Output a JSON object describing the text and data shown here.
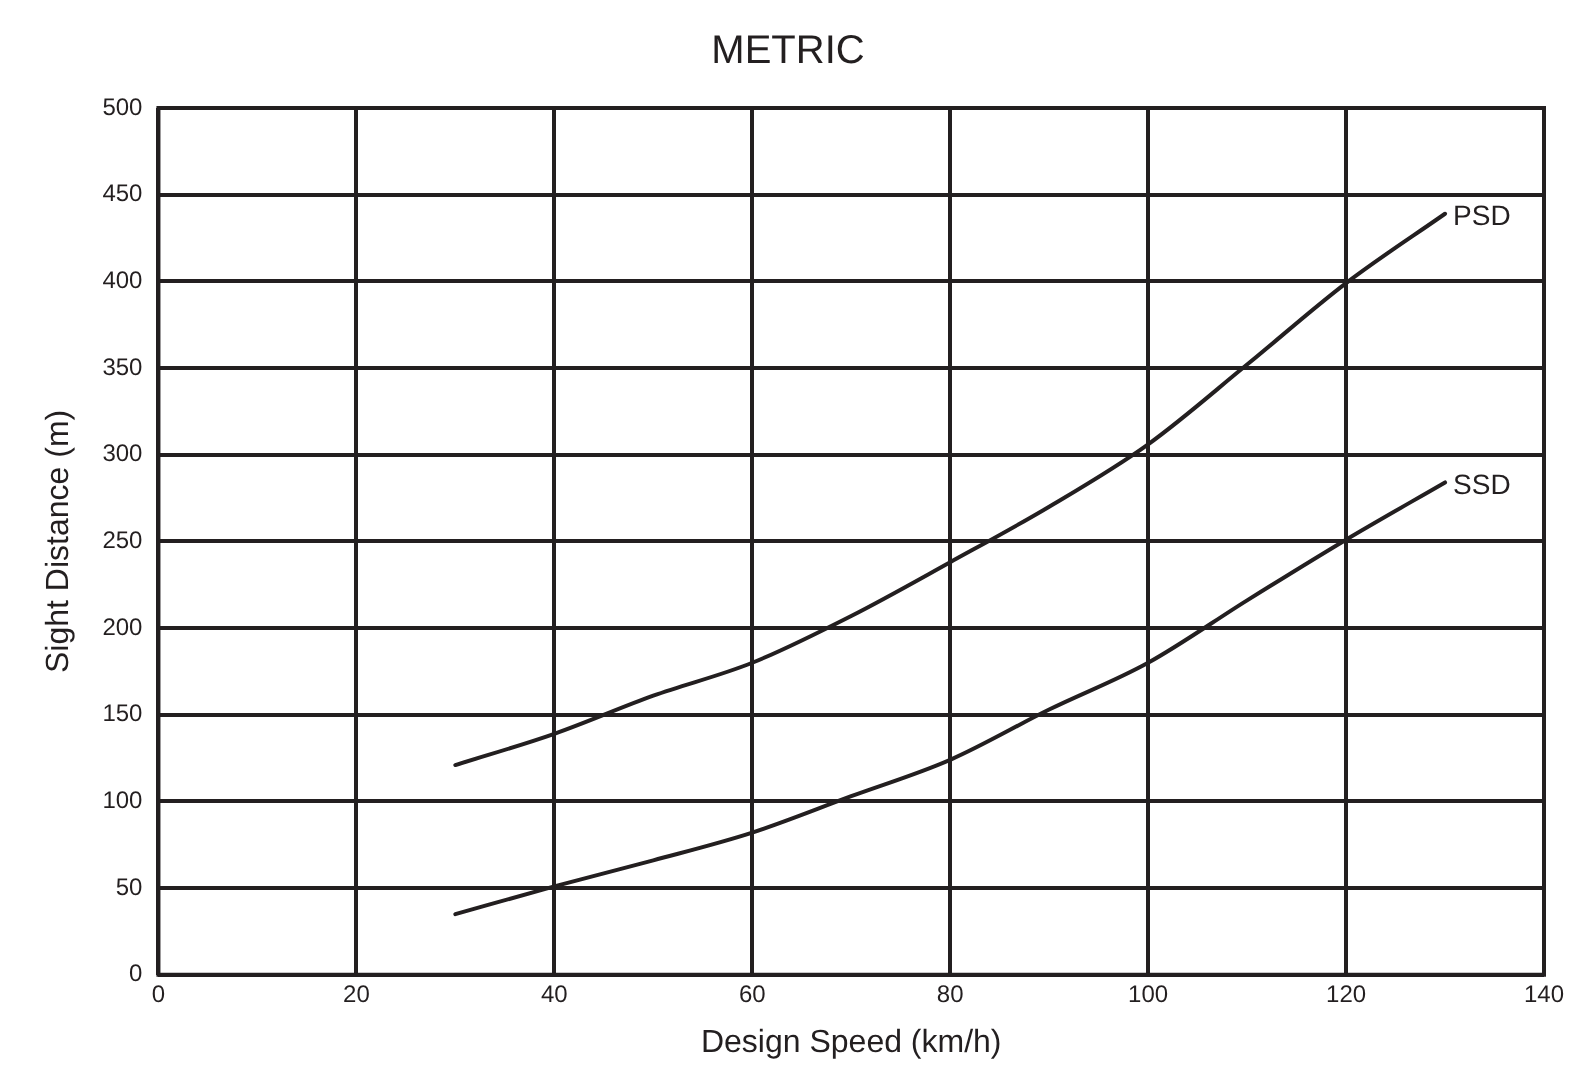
{
  "chart_data": {
    "type": "line",
    "title": "METRIC",
    "xlabel": "Design Speed (km/h)",
    "ylabel": "Sight Distance (m)",
    "x": [
      30,
      40,
      50,
      60,
      70,
      80,
      90,
      100,
      110,
      120,
      130
    ],
    "series": [
      {
        "name": "PSD",
        "color": "#231f20",
        "values": [
          121,
          139,
          161,
          180,
          207,
          238,
          270,
          306,
          352,
          399,
          439
        ]
      },
      {
        "name": "SSD",
        "color": "#231f20",
        "values": [
          35,
          51,
          66,
          82,
          103,
          124,
          153,
          180,
          216,
          251,
          284
        ]
      }
    ],
    "xlim": [
      0,
      140
    ],
    "xticks": [
      0,
      20,
      40,
      60,
      80,
      100,
      120,
      140
    ],
    "ylim": [
      0,
      500
    ],
    "yticks": [
      0,
      50,
      100,
      150,
      200,
      250,
      300,
      350,
      400,
      450,
      500
    ],
    "grid": true,
    "legend": false,
    "marker": "none",
    "line_style": "solid"
  }
}
